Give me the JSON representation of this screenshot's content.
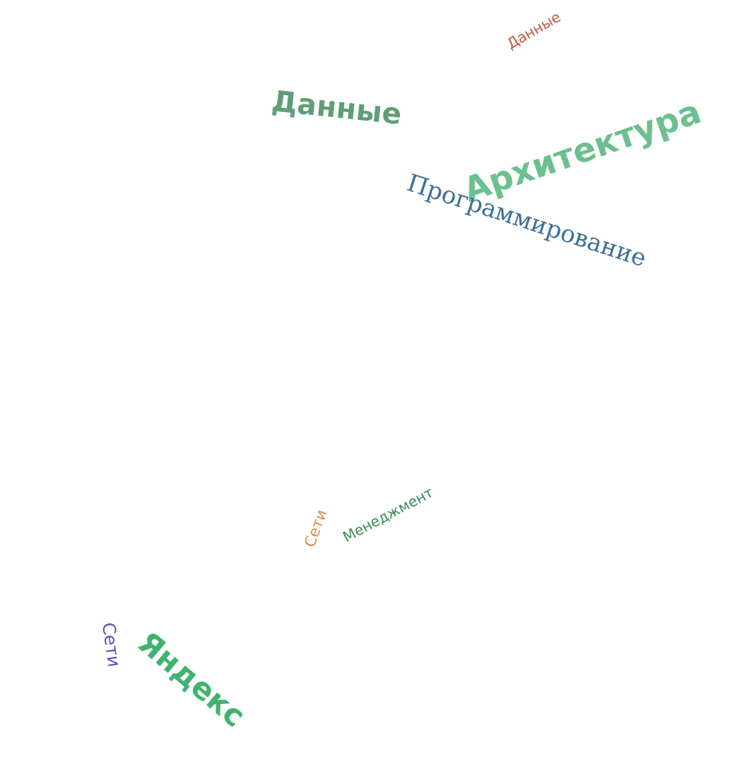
{
  "words": [
    {
      "id": "data-small",
      "text": "Данные",
      "color": "#c0553a"
    },
    {
      "id": "data-big",
      "text": "Данные",
      "color": "#5f9e75"
    },
    {
      "id": "architecture",
      "text": "Архитектура",
      "color": "#6cbf8e"
    },
    {
      "id": "programming",
      "text": "Программирование",
      "color": "#3e6e96"
    },
    {
      "id": "management",
      "text": "Менеджмент",
      "color": "#3a8a52"
    },
    {
      "id": "networks-small",
      "text": "Сети",
      "color": "#d98a4a"
    },
    {
      "id": "networks-left",
      "text": "Сети",
      "color": "#5a55b8"
    },
    {
      "id": "yandex",
      "text": "Яндекс",
      "color": "#3fb36e"
    }
  ]
}
